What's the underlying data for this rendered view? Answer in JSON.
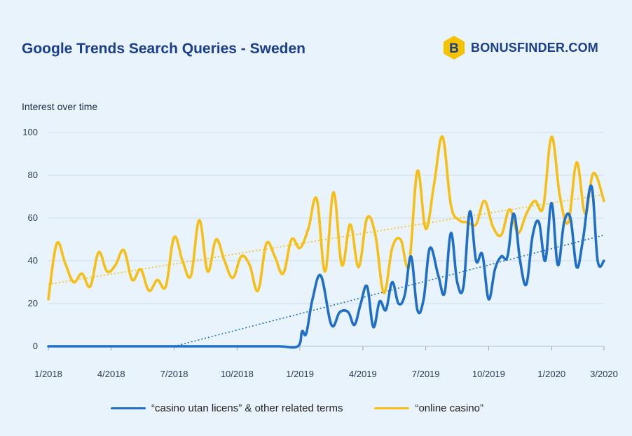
{
  "title": "Google Trends Search Queries - Sweden",
  "brand": {
    "name": "BONUSFINDER.COM",
    "logo_letter": "B",
    "logo_color": "#f5c200"
  },
  "chart_data": {
    "type": "line",
    "ylabel": "Interest over time",
    "ylim": [
      0,
      100
    ],
    "yticks": [
      "0",
      "20",
      "40",
      "60",
      "80",
      "100"
    ],
    "grid": true,
    "x_range": [
      0,
      26.5
    ],
    "xticks": [
      {
        "pos": 0,
        "label": "1/2018"
      },
      {
        "pos": 3,
        "label": "4/2018"
      },
      {
        "pos": 6,
        "label": "7/2018"
      },
      {
        "pos": 9,
        "label": "10/2018"
      },
      {
        "pos": 12,
        "label": "1/2019"
      },
      {
        "pos": 15,
        "label": "4/2019"
      },
      {
        "pos": 18,
        "label": "7/2019"
      },
      {
        "pos": 21,
        "label": "10/2019"
      },
      {
        "pos": 24,
        "label": "1/2020"
      },
      {
        "pos": 26.5,
        "label": "3/2020"
      }
    ],
    "series": [
      {
        "name": "“casino utan licens” & other related terms",
        "color": "#1f6fc9",
        "x": [
          0,
          1,
          2,
          3,
          4,
          5,
          6,
          7,
          8,
          9,
          10,
          11,
          11.9,
          12.1,
          12.3,
          12.6,
          13.0,
          13.5,
          13.9,
          14.3,
          14.6,
          14.9,
          15.2,
          15.5,
          15.8,
          16.1,
          16.4,
          16.7,
          17.0,
          17.3,
          17.6,
          17.9,
          18.2,
          18.6,
          18.9,
          19.2,
          19.5,
          19.8,
          20.1,
          20.4,
          20.7,
          21.0,
          21.3,
          21.6,
          21.9,
          22.2,
          22.5,
          22.8,
          23.1,
          23.4,
          23.7,
          24.0,
          24.3,
          24.6,
          24.9,
          25.2,
          25.5,
          25.9,
          26.2,
          26.5
        ],
        "y": [
          0,
          0,
          0,
          0,
          0,
          0,
          0,
          0,
          0,
          0,
          0,
          0,
          0,
          7,
          6,
          22,
          33,
          10,
          16,
          16,
          10,
          20,
          28,
          9,
          21,
          17,
          30,
          20,
          24,
          42,
          17,
          22,
          46,
          33,
          25,
          53,
          30,
          28,
          63,
          40,
          43,
          22,
          36,
          42,
          42,
          62,
          40,
          29,
          52,
          58,
          40,
          67,
          38,
          58,
          60,
          37,
          50,
          75,
          40,
          40
        ],
        "trend": [
          [
            6,
            0
          ],
          [
            26.5,
            52
          ]
        ]
      },
      {
        "name": "“online casino”",
        "color": "#f7be16",
        "x": [
          0,
          0.4,
          0.8,
          1.2,
          1.6,
          2.0,
          2.4,
          2.8,
          3.2,
          3.6,
          4.0,
          4.4,
          4.8,
          5.2,
          5.6,
          6.0,
          6.4,
          6.8,
          7.2,
          7.6,
          8.0,
          8.4,
          8.8,
          9.2,
          9.6,
          10.0,
          10.4,
          10.8,
          11.2,
          11.6,
          12.0,
          12.4,
          12.8,
          13.2,
          13.6,
          14.0,
          14.4,
          14.8,
          15.2,
          15.6,
          16.0,
          16.4,
          16.8,
          17.2,
          17.6,
          18.0,
          18.4,
          18.8,
          19.2,
          19.6,
          20.0,
          20.4,
          20.8,
          21.2,
          21.6,
          22.0,
          22.4,
          22.8,
          23.2,
          23.6,
          24.0,
          24.4,
          24.8,
          25.2,
          25.6,
          26.0,
          26.5
        ],
        "y": [
          22,
          48,
          39,
          30,
          34,
          28,
          44,
          35,
          38,
          45,
          31,
          36,
          26,
          31,
          28,
          51,
          40,
          33,
          59,
          35,
          50,
          40,
          32,
          42,
          38,
          26,
          48,
          42,
          34,
          50,
          46,
          55,
          69,
          35,
          72,
          38,
          57,
          37,
          60,
          52,
          25,
          46,
          50,
          38,
          82,
          55,
          76,
          98,
          66,
          59,
          58,
          57,
          68,
          56,
          52,
          64,
          53,
          62,
          68,
          65,
          98,
          70,
          58,
          86,
          62,
          81,
          68
        ],
        "trend": [
          [
            0,
            29
          ],
          [
            26.5,
            71
          ]
        ]
      }
    ]
  }
}
